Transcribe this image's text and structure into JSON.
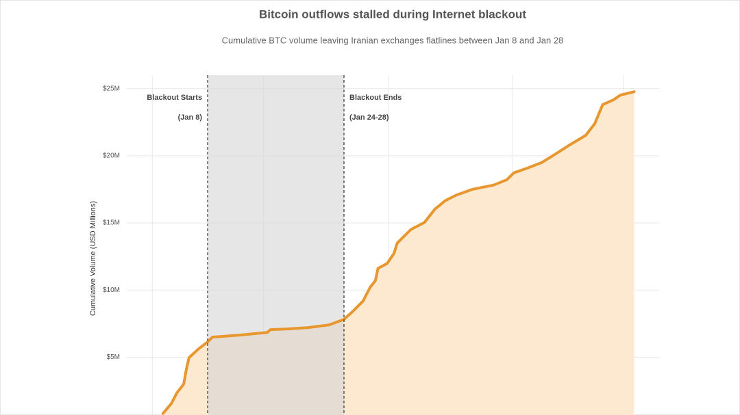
{
  "chart_data": {
    "type": "area",
    "title": "Bitcoin outflows stalled during Internet blackout",
    "subtitle": "Cumulative BTC volume leaving Iranian exchanges flatlines between Jan 8 and Jan 28",
    "y_label": "Cumulative Volume (USD Millions)",
    "x": [
      6.8,
      8.4,
      9.4,
      10.7,
      11.2,
      11.7,
      13.5,
      15.2,
      16.1,
      21.2,
      26.4,
      27.0,
      30.2,
      34.1,
      38.0,
      40.8,
      42.5,
      44.4,
      45.7,
      46.7,
      47.2,
      48.9,
      50.2,
      50.8,
      52.1,
      53.4,
      55.9,
      57.9,
      59.8,
      61.8,
      65.0,
      68.9,
      71.4,
      72.7,
      75.3,
      77.9,
      80.4,
      83.0,
      86.2,
      87.9,
      89.4,
      91.4,
      92.7,
      95.3
    ],
    "series": [
      {
        "name": "Cumulative BTC volume",
        "color": "#e8962e",
        "fill": "#fde9cf",
        "values": [
          0.81,
          1.57,
          2.34,
          3.0,
          4.11,
          4.97,
          5.63,
          6.14,
          6.5,
          6.65,
          6.85,
          7.06,
          7.11,
          7.21,
          7.41,
          7.82,
          8.43,
          9.19,
          10.2,
          10.71,
          11.62,
          11.98,
          12.74,
          13.5,
          14.01,
          14.52,
          15.03,
          16.04,
          16.65,
          17.06,
          17.51,
          17.82,
          18.22,
          18.73,
          19.09,
          19.49,
          20.1,
          20.76,
          21.52,
          22.39,
          23.81,
          24.16,
          24.52,
          24.77
        ]
      }
    ],
    "xlim": [
      0,
      100
    ],
    "xticks": [
      4.8,
      25.7,
      49.2,
      72.5,
      93.3
    ],
    "ylim": [
      0.7,
      26
    ],
    "yticks": [
      {
        "value": 5,
        "label": "$5M"
      },
      {
        "value": 10,
        "label": "$10M"
      },
      {
        "value": 15,
        "label": "$15M"
      },
      {
        "value": 20,
        "label": "$20M"
      },
      {
        "value": 25,
        "label": "$25M"
      }
    ],
    "grid": true,
    "blackout": {
      "start": 15.2,
      "end": 40.8,
      "color": "#d6d6d6"
    },
    "annotations": [
      {
        "x": 15.2,
        "side": "left",
        "lines": [
          "Blackout Starts",
          "(Jan 8)"
        ]
      },
      {
        "x": 40.8,
        "side": "right",
        "lines": [
          "Blackout Ends",
          "(Jan 24-28)"
        ]
      }
    ]
  }
}
